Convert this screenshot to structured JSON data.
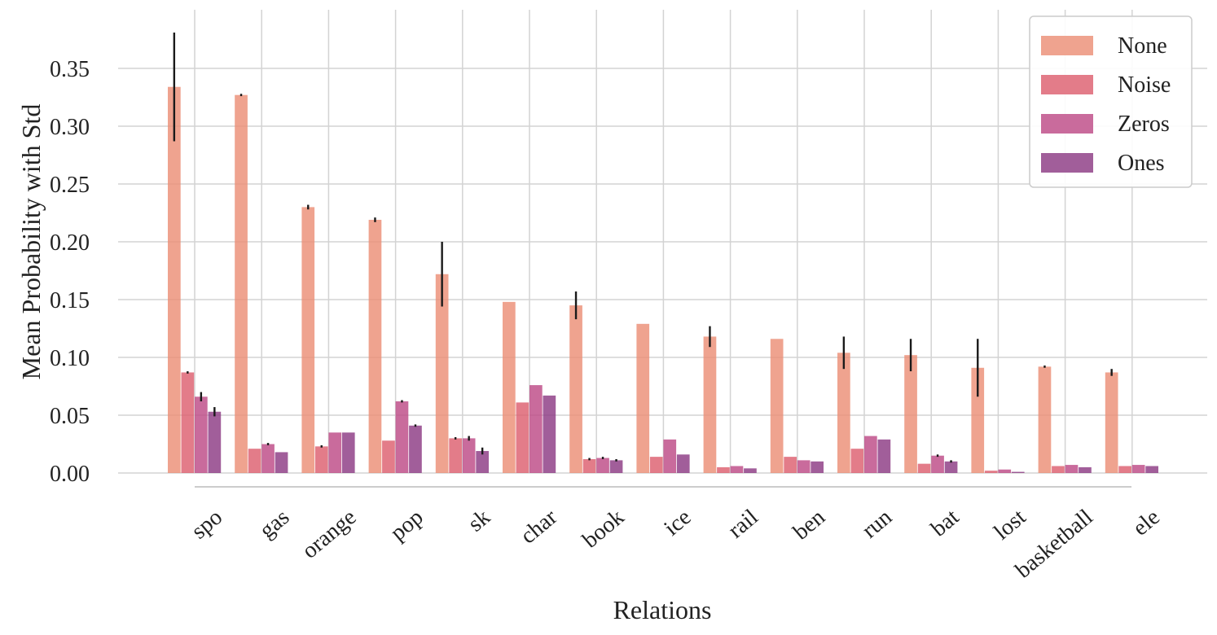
{
  "chart_data": {
    "type": "bar",
    "xlabel": "Relations",
    "ylabel": "Mean Probability with Std",
    "ylim": [
      0,
      0.38
    ],
    "yticks": [
      "0.00",
      "0.05",
      "0.10",
      "0.15",
      "0.20",
      "0.25",
      "0.30",
      "0.35"
    ],
    "grid": true,
    "legend_position": "top-right",
    "categories": [
      "spo",
      "gas",
      "orange",
      "pop",
      "sk",
      "char",
      "book",
      "ice",
      "rail",
      "ben",
      "run",
      "bat",
      "lost",
      "basketball",
      "ele"
    ],
    "series": [
      {
        "name": "None",
        "color": "#eb8f76",
        "values": [
          0.334,
          0.327,
          0.23,
          0.219,
          0.172,
          0.148,
          0.145,
          0.129,
          0.118,
          0.116,
          0.104,
          0.102,
          0.091,
          0.092,
          0.087
        ],
        "std": [
          0.047,
          0.001,
          0.002,
          0.002,
          0.028,
          0.0,
          0.012,
          0.0,
          0.009,
          0.0,
          0.014,
          0.014,
          0.025,
          0.001,
          0.003
        ]
      },
      {
        "name": "Noise",
        "color": "#dd5f6f",
        "values": [
          0.087,
          0.021,
          0.023,
          0.028,
          0.03,
          0.061,
          0.012,
          0.014,
          0.005,
          0.014,
          0.021,
          0.008,
          0.002,
          0.006,
          0.006
        ],
        "std": [
          0.001,
          0.0,
          0.001,
          0.0,
          0.001,
          0.0,
          0.001,
          0.0,
          0.0,
          0.0,
          0.0,
          0.0,
          0.0,
          0.0,
          0.0
        ]
      },
      {
        "name": "Zeros",
        "color": "#bd4a86",
        "values": [
          0.066,
          0.025,
          0.035,
          0.062,
          0.03,
          0.076,
          0.013,
          0.029,
          0.006,
          0.011,
          0.032,
          0.015,
          0.003,
          0.007,
          0.007
        ],
        "std": [
          0.004,
          0.001,
          0.0,
          0.001,
          0.002,
          0.0,
          0.001,
          0.0,
          0.0,
          0.0,
          0.0,
          0.001,
          0.0,
          0.0,
          0.0
        ]
      },
      {
        "name": "Ones",
        "color": "#8c3a84",
        "values": [
          0.053,
          0.018,
          0.035,
          0.041,
          0.019,
          0.067,
          0.011,
          0.016,
          0.004,
          0.01,
          0.029,
          0.01,
          0.001,
          0.005,
          0.006
        ],
        "std": [
          0.004,
          0.0,
          0.0,
          0.001,
          0.003,
          0.0,
          0.001,
          0.0,
          0.0,
          0.0,
          0.0,
          0.001,
          0.0,
          0.0,
          0.0
        ]
      }
    ]
  }
}
